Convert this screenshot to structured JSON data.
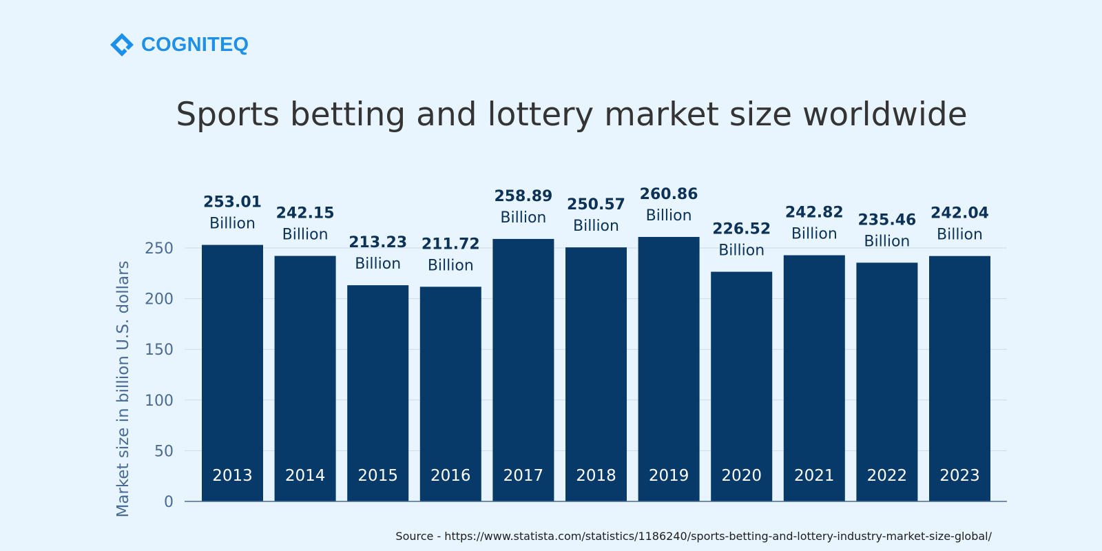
{
  "brand": {
    "name": "COGNITEQ",
    "color": "#1e90e8"
  },
  "source": "Source - https://www.statista.com/statistics/1186240/sports-betting-and-lottery-industry-market-size-global/",
  "chart_data": {
    "type": "bar",
    "title": "Sports betting and lottery market size worldwide",
    "xlabel": "",
    "ylabel": "Market size in billion U.S. dollars",
    "ylim": [
      0,
      250
    ],
    "yticks": [
      0,
      50,
      100,
      150,
      200,
      250
    ],
    "categories": [
      "2013",
      "2014",
      "2015",
      "2016",
      "2017",
      "2018",
      "2019",
      "2020",
      "2021",
      "2022",
      "2023"
    ],
    "values": [
      253.01,
      242.15,
      213.23,
      211.72,
      258.89,
      250.57,
      260.86,
      226.52,
      242.82,
      235.46,
      242.04
    ],
    "data_labels": [
      "253.01",
      "242.15",
      "213.23",
      "211.72",
      "258.89",
      "250.57",
      "260.86",
      "226.52",
      "242.82",
      "235.46",
      "242.04"
    ],
    "unit_label": "Billion",
    "grid": true,
    "colors": {
      "bar": "#083a69",
      "grid": "#cfdae6",
      "axis_text": "#4a6b94",
      "label": "#0c3258",
      "category_text": "#ffffff"
    }
  }
}
